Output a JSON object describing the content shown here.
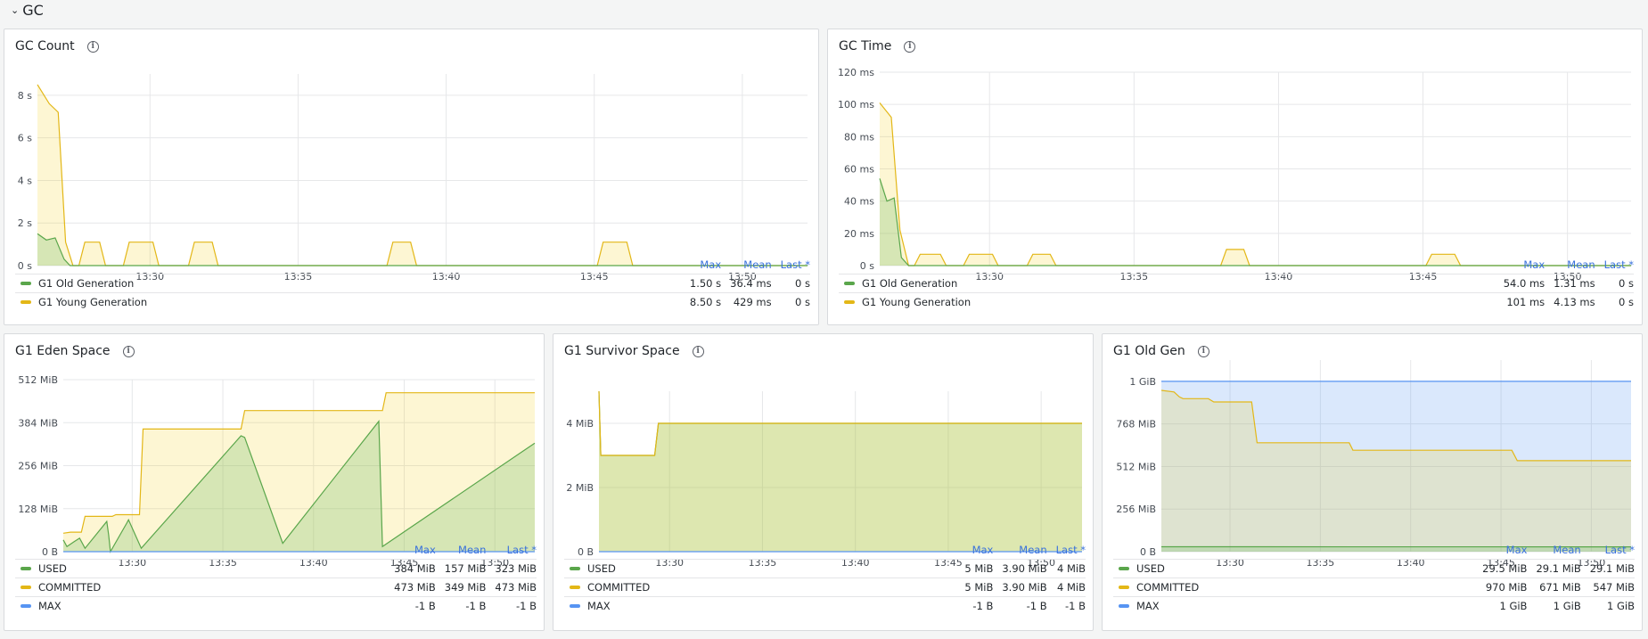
{
  "row": {
    "title": "GC",
    "collapse_icon": "chevron-down-icon"
  },
  "colors": {
    "green": "#5aa64b",
    "yellow": "#e3b717",
    "blue": "#5794f2",
    "green_fill": "rgba(115,191,105,0.28)",
    "yellow_fill": "rgba(242,204,12,0.18)",
    "blue_fill": "rgba(87,148,242,0.22)",
    "link": "#3871dc"
  },
  "legend_headers": {
    "max": "Max",
    "mean": "Mean",
    "last": "Last *"
  },
  "panels": [
    {
      "title": "GC Count",
      "rows": [
        {
          "name": "G1 Old Generation",
          "color": "green",
          "max": "1.50 s",
          "mean": "36.4 ms",
          "last": "0 s"
        },
        {
          "name": "G1 Young Generation",
          "color": "yellow",
          "max": "8.50 s",
          "mean": "429 ms",
          "last": "0 s"
        }
      ]
    },
    {
      "title": "GC Time",
      "rows": [
        {
          "name": "G1 Old Generation",
          "color": "green",
          "max": "54.0 ms",
          "mean": "1.31 ms",
          "last": "0 s"
        },
        {
          "name": "G1 Young Generation",
          "color": "yellow",
          "max": "101 ms",
          "mean": "4.13 ms",
          "last": "0 s"
        }
      ]
    },
    {
      "title": "G1 Eden Space",
      "rows": [
        {
          "name": "USED",
          "color": "green",
          "max": "384 MiB",
          "mean": "157 MiB",
          "last": "323 MiB"
        },
        {
          "name": "COMMITTED",
          "color": "yellow",
          "max": "473 MiB",
          "mean": "349 MiB",
          "last": "473 MiB"
        },
        {
          "name": "MAX",
          "color": "blue",
          "max": "-1 B",
          "mean": "-1 B",
          "last": "-1 B"
        }
      ]
    },
    {
      "title": "G1 Survivor Space",
      "rows": [
        {
          "name": "USED",
          "color": "green",
          "max": "5 MiB",
          "mean": "3.90 MiB",
          "last": "4 MiB"
        },
        {
          "name": "COMMITTED",
          "color": "yellow",
          "max": "5 MiB",
          "mean": "3.90 MiB",
          "last": "4 MiB"
        },
        {
          "name": "MAX",
          "color": "blue",
          "max": "-1 B",
          "mean": "-1 B",
          "last": "-1 B"
        }
      ]
    },
    {
      "title": "G1 Old Gen",
      "rows": [
        {
          "name": "USED",
          "color": "green",
          "max": "29.5 MiB",
          "mean": "29.1 MiB",
          "last": "29.1 MiB"
        },
        {
          "name": "COMMITTED",
          "color": "yellow",
          "max": "970 MiB",
          "mean": "671 MiB",
          "last": "547 MiB"
        },
        {
          "name": "MAX",
          "color": "blue",
          "max": "1 GiB",
          "mean": "1 GiB",
          "last": "1 GiB"
        }
      ]
    }
  ],
  "chart_data": [
    {
      "type": "area",
      "title": "GC Count",
      "y_unit": "s",
      "ylim": [
        0,
        9
      ],
      "y_ticks": [
        0,
        2,
        4,
        6,
        8
      ],
      "y_tick_labels": [
        "0 s",
        "2 s",
        "4 s",
        "6 s",
        "8 s"
      ],
      "xlim": [
        26.2,
        52.2
      ],
      "x_ticks": [
        30,
        35,
        40,
        45,
        50
      ],
      "x_tick_labels": [
        "13:30",
        "13:35",
        "13:40",
        "13:45",
        "13:50"
      ],
      "series": [
        {
          "name": "G1 Old Generation",
          "color": "green",
          "x": [
            26.2,
            26.5,
            26.8,
            27.1,
            27.3,
            27.6,
            52.2
          ],
          "y": [
            1.5,
            1.2,
            1.3,
            0.3,
            0,
            0,
            0
          ]
        },
        {
          "name": "G1 Young Generation",
          "color": "yellow",
          "x": [
            26.2,
            26.6,
            26.9,
            27.15,
            27.4,
            27.6,
            27.8,
            28.3,
            28.5,
            29.1,
            29.3,
            30.1,
            30.3,
            31.3,
            31.5,
            32.1,
            32.3,
            38.0,
            38.2,
            38.8,
            39.0,
            45.1,
            45.3,
            46.1,
            46.3,
            52.2
          ],
          "y": [
            8.5,
            7.6,
            7.2,
            1.1,
            0,
            0,
            1.1,
            1.1,
            0,
            0,
            1.1,
            1.1,
            0,
            0,
            1.1,
            1.1,
            0,
            0,
            1.1,
            1.1,
            0,
            0,
            1.1,
            1.1,
            0,
            0
          ]
        }
      ]
    },
    {
      "type": "area",
      "title": "GC Time",
      "y_unit": "ms",
      "ylim": [
        0,
        120
      ],
      "y_ticks": [
        0,
        20,
        40,
        60,
        80,
        100,
        120
      ],
      "y_tick_labels": [
        "0 s",
        "20 ms",
        "40 ms",
        "60 ms",
        "80 ms",
        "100 ms",
        "120 ms"
      ],
      "xlim": [
        26.2,
        52.2
      ],
      "x_ticks": [
        30,
        35,
        40,
        45,
        50
      ],
      "x_tick_labels": [
        "13:30",
        "13:35",
        "13:40",
        "13:45",
        "13:50"
      ],
      "series": [
        {
          "name": "G1 Old Generation",
          "color": "green",
          "x": [
            26.2,
            26.45,
            26.7,
            26.95,
            27.2,
            52.2
          ],
          "y": [
            54,
            40,
            42,
            5,
            0,
            0
          ]
        },
        {
          "name": "G1 Young Generation",
          "color": "yellow",
          "x": [
            26.2,
            26.6,
            26.9,
            27.2,
            27.4,
            27.6,
            27.8,
            28.3,
            28.5,
            29.1,
            29.3,
            30.1,
            30.3,
            31.3,
            31.5,
            32.1,
            32.3,
            38.0,
            38.2,
            38.8,
            39.0,
            45.1,
            45.3,
            46.1,
            46.3,
            52.2
          ],
          "y": [
            101,
            92,
            22,
            0,
            0,
            7,
            7,
            7,
            0,
            0,
            7,
            7,
            0,
            0,
            7,
            7,
            0,
            0,
            10,
            10,
            0,
            0,
            7,
            7,
            0,
            0
          ]
        }
      ]
    },
    {
      "type": "area",
      "title": "G1 Eden Space",
      "y_unit": "MiB",
      "ylim": [
        0,
        512
      ],
      "y_ticks": [
        0,
        128,
        256,
        384,
        512
      ],
      "y_tick_labels": [
        "0 B",
        "128 MiB",
        "256 MiB",
        "384 MiB",
        "512 MiB"
      ],
      "xlim": [
        26.2,
        52.2
      ],
      "x_ticks": [
        30,
        35,
        40,
        45,
        50
      ],
      "x_tick_labels": [
        "13:30",
        "13:35",
        "13:40",
        "13:45",
        "13:50"
      ],
      "series": [
        {
          "name": "USED",
          "color": "green",
          "x": [
            26.2,
            26.4,
            26.8,
            27.1,
            27.4,
            28.6,
            28.7,
            28.8,
            29.7,
            29.8,
            30.5,
            36.0,
            36.2,
            38.3,
            43.6,
            43.8,
            52.2
          ],
          "y": [
            35,
            15,
            30,
            40,
            10,
            90,
            50,
            0,
            85,
            95,
            10,
            345,
            340,
            25,
            388,
            15,
            323
          ]
        },
        {
          "name": "COMMITTED",
          "color": "yellow",
          "x": [
            26.2,
            26.6,
            27.2,
            27.4,
            28.9,
            29.1,
            30.4,
            30.6,
            36.0,
            36.2,
            43.8,
            44.0,
            52.2
          ],
          "y": [
            55,
            58,
            58,
            105,
            105,
            110,
            110,
            365,
            365,
            420,
            420,
            473,
            473
          ]
        },
        {
          "name": "MAX",
          "color": "blue",
          "x": [
            26.2,
            52.2
          ],
          "y": [
            0,
            0
          ]
        }
      ]
    },
    {
      "type": "area",
      "title": "G1 Survivor Space",
      "y_unit": "MiB",
      "ylim": [
        0,
        5
      ],
      "y_ticks": [
        0,
        2,
        4
      ],
      "y_tick_labels": [
        "0 B",
        "2 MiB",
        "4 MiB"
      ],
      "xlim": [
        26.2,
        52.2
      ],
      "x_ticks": [
        30,
        35,
        40,
        45,
        50
      ],
      "x_tick_labels": [
        "13:30",
        "13:35",
        "13:40",
        "13:45",
        "13:50"
      ],
      "series": [
        {
          "name": "USED",
          "color": "green",
          "x": [
            26.2,
            26.3,
            26.5,
            29.2,
            29.4,
            52.2
          ],
          "y": [
            5,
            3,
            3,
            3,
            4,
            4
          ]
        },
        {
          "name": "COMMITTED",
          "color": "yellow",
          "x": [
            26.2,
            26.3,
            26.5,
            29.2,
            29.4,
            52.2
          ],
          "y": [
            5,
            3,
            3,
            3,
            4,
            4
          ]
        },
        {
          "name": "MAX",
          "color": "blue",
          "x": [
            26.2,
            52.2
          ],
          "y": [
            0,
            0
          ]
        }
      ]
    },
    {
      "type": "area",
      "title": "G1 Old Gen",
      "y_unit": "MiB",
      "ylim": [
        0,
        1152
      ],
      "y_ticks": [
        0,
        256,
        512,
        768,
        1024
      ],
      "y_tick_labels": [
        "0 B",
        "256 MiB",
        "512 MiB",
        "768 MiB",
        "1 GiB"
      ],
      "xlim": [
        26.2,
        52.2
      ],
      "x_ticks": [
        30,
        35,
        40,
        45,
        50
      ],
      "x_tick_labels": [
        "13:30",
        "13:35",
        "13:40",
        "13:45",
        "13:50"
      ],
      "series": [
        {
          "name": "USED",
          "color": "green",
          "x": [
            26.2,
            52.2
          ],
          "y": [
            29.5,
            29.1
          ]
        },
        {
          "name": "COMMITTED",
          "color": "yellow",
          "x": [
            26.2,
            26.9,
            27.2,
            27.4,
            28.8,
            29.1,
            31.2,
            31.5,
            36.6,
            36.8,
            45.6,
            45.9,
            52.2
          ],
          "y": [
            970,
            960,
            930,
            920,
            920,
            900,
            900,
            655,
            655,
            610,
            610,
            547,
            547
          ]
        },
        {
          "name": "MAX",
          "color": "blue",
          "x": [
            26.2,
            52.2
          ],
          "y": [
            1024,
            1024
          ]
        }
      ]
    }
  ]
}
